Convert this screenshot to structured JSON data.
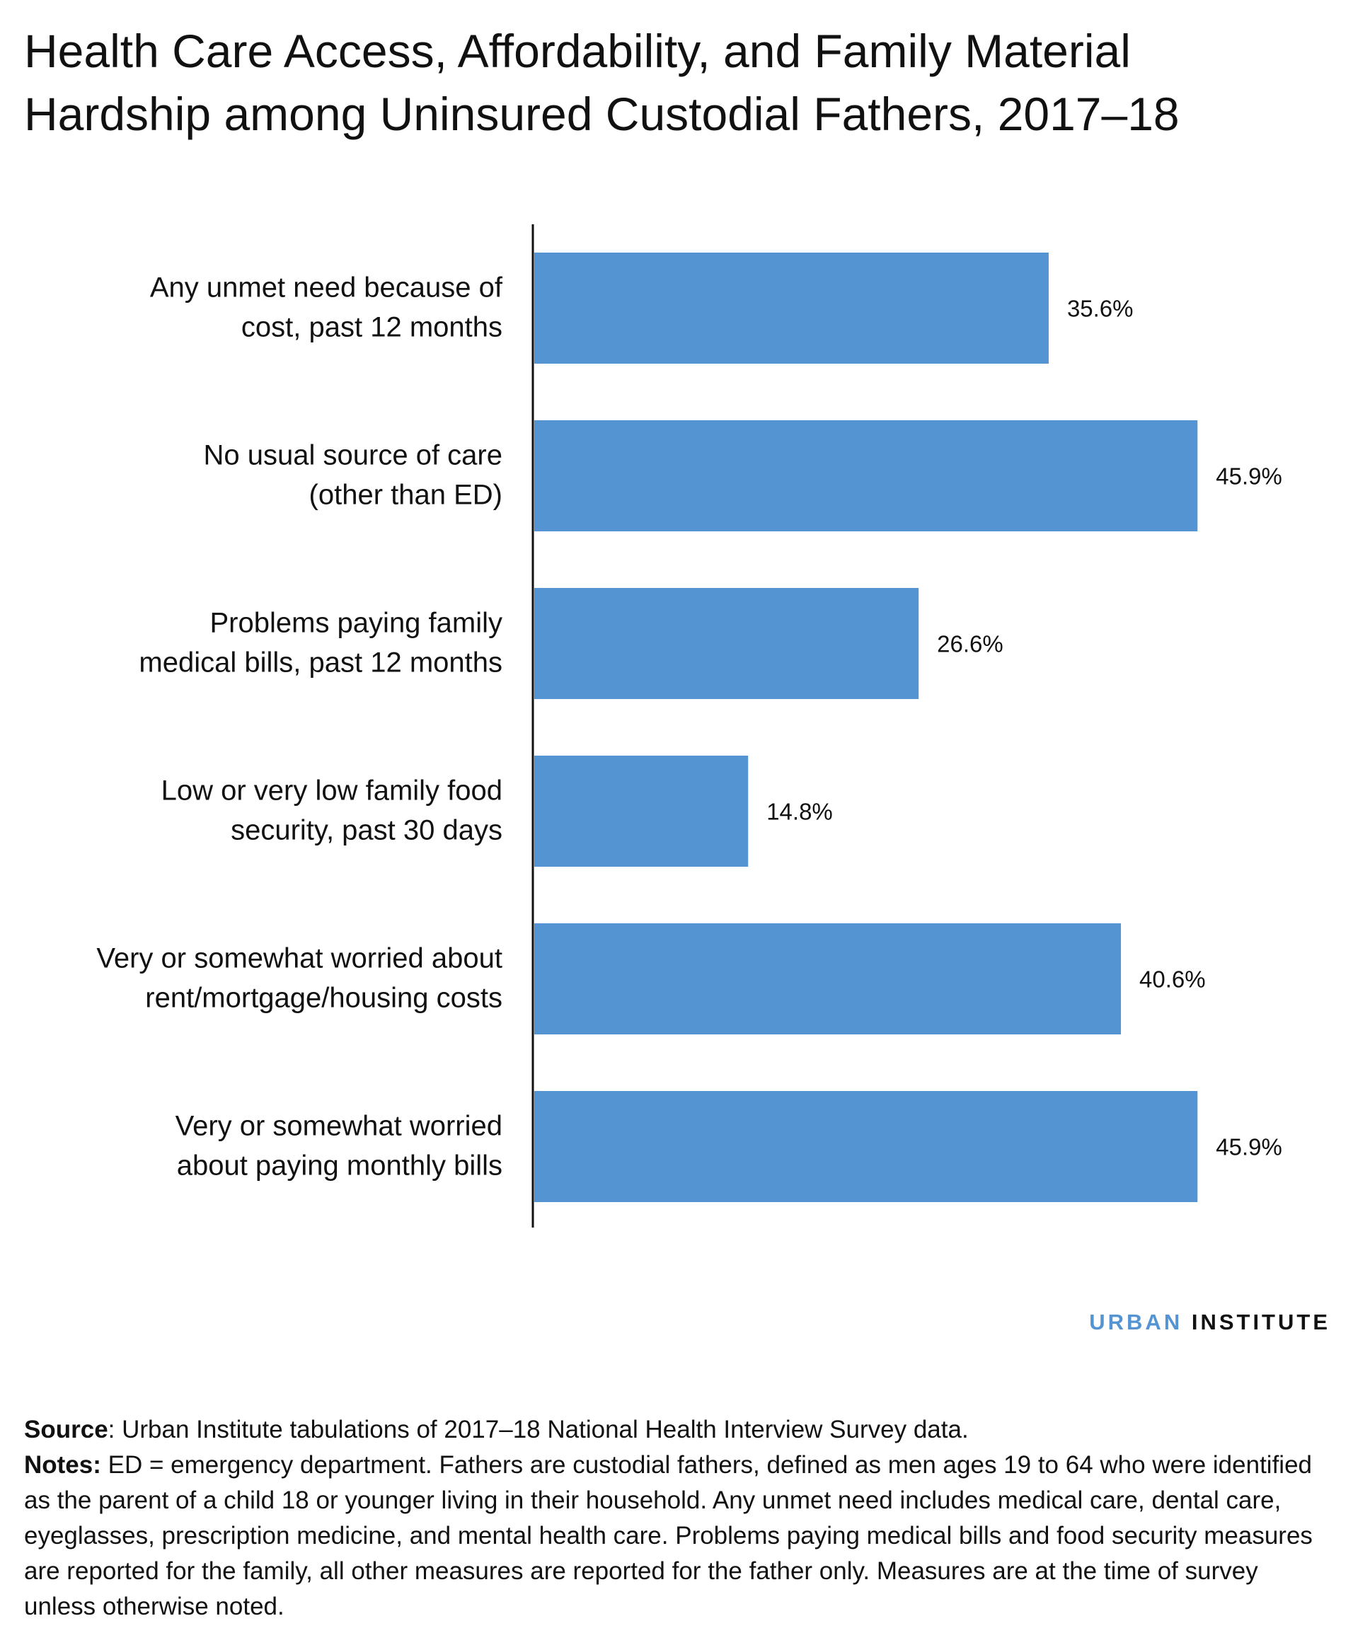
{
  "title_lines": [
    "Health Care Access, Affordability, and Family Material",
    "Hardship among Uninsured Custodial Fathers, 2017–18"
  ],
  "chart_data": {
    "type": "bar",
    "orientation": "horizontal",
    "categories": [
      [
        "Any unmet need because of",
        "cost, past 12 months"
      ],
      [
        "No usual source of care",
        "(other than ED)"
      ],
      [
        "Problems paying family",
        "medical bills, past 12 months"
      ],
      [
        "Low or very low family food",
        "security, past 30 days"
      ],
      [
        "Very or somewhat worried about",
        "rent/mortgage/housing costs"
      ],
      [
        "Very or somewhat worried",
        "about paying monthly bills"
      ]
    ],
    "values": [
      35.6,
      45.9,
      26.6,
      14.8,
      40.6,
      45.9
    ],
    "value_labels": [
      "35.6%",
      "45.9%",
      "26.6%",
      "14.8%",
      "40.6%",
      "45.9%"
    ],
    "bar_color": "#5594d2",
    "grid": false,
    "legend": "none"
  },
  "brand": {
    "part1": "URBAN",
    "part2": "INSTITUTE"
  },
  "footer": {
    "source_label": "Source",
    "source_text": ": Urban Institute tabulations of 2017–18 National Health Interview Survey data.",
    "notes_label": "Notes:",
    "notes_text": " ED = emergency department. Fathers are custodial fathers, defined as men ages 19 to 64 who were identified as the parent of a child 18 or younger living in their household. Any unmet need includes medical care, dental care, eyeglasses, prescription medicine, and mental health care. Problems paying medical bills and food security measures are reported for the family, all other measures are reported for the father only. Measures are at the time of survey unless otherwise noted."
  }
}
